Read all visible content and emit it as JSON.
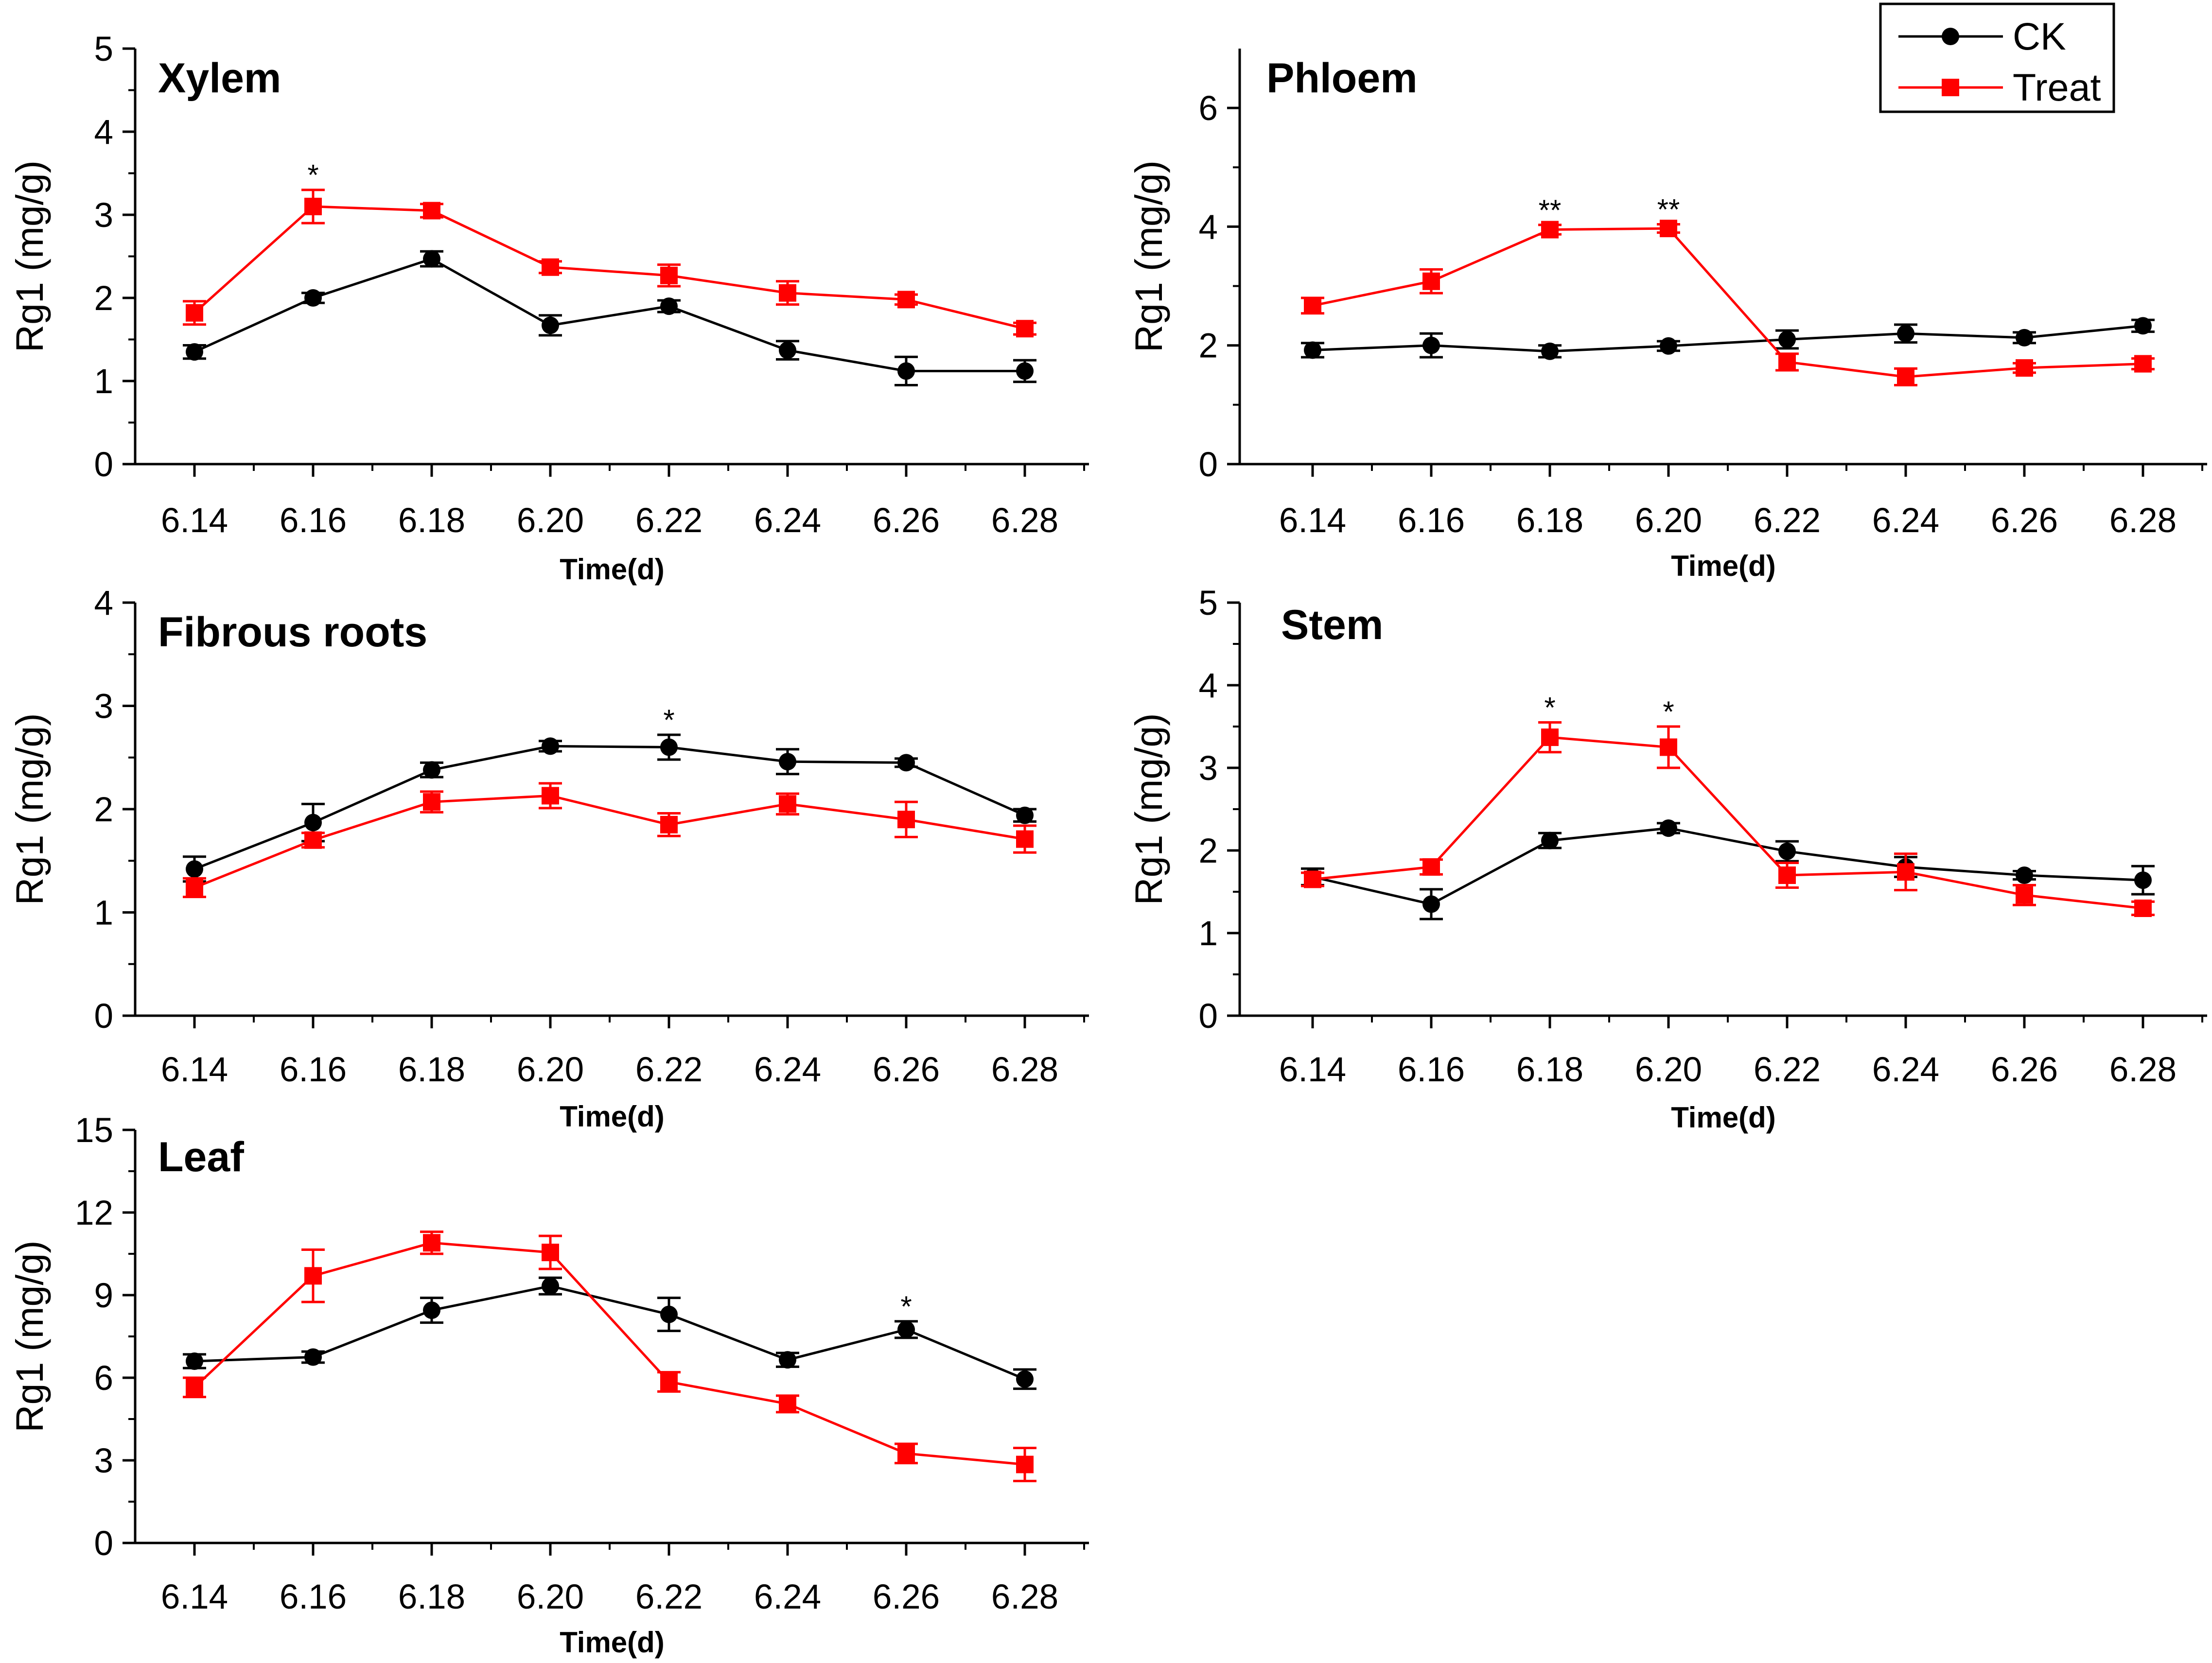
{
  "chart_data": {
    "type": "line",
    "legend": {
      "position": "top-right",
      "entries": [
        {
          "name": "CK",
          "color": "#000000",
          "marker": "circle"
        },
        {
          "name": "Treat",
          "color": "#ff0000",
          "marker": "square"
        }
      ]
    },
    "x_tick_labels": [
      "6.14",
      "6.16",
      "6.18",
      "6.20",
      "6.22",
      "6.24",
      "6.26",
      "6.28"
    ],
    "panels": [
      {
        "name": "xylem",
        "title": "Xylem",
        "xlabel": "Time(d)",
        "ylabel": "Rg1 (mg/g)",
        "ylim": [
          0,
          5
        ],
        "yticks": [
          0,
          1,
          2,
          3,
          4,
          5
        ],
        "series": [
          {
            "name": "CK",
            "values": [
              1.35,
              2.0,
              2.47,
              1.67,
              1.9,
              1.37,
              1.12,
              1.12
            ],
            "errors": [
              0.08,
              0.06,
              0.09,
              0.12,
              0.07,
              0.11,
              0.17,
              0.13
            ]
          },
          {
            "name": "Treat",
            "values": [
              1.82,
              3.1,
              3.05,
              2.37,
              2.27,
              2.06,
              1.98,
              1.63
            ],
            "errors": [
              0.14,
              0.2,
              0.08,
              0.07,
              0.13,
              0.14,
              0.06,
              0.07
            ]
          }
        ],
        "significance": [
          {
            "index": 1,
            "label": "*"
          }
        ]
      },
      {
        "name": "phloem",
        "title": "Phloem",
        "xlabel": "Time(d)",
        "ylabel": "Rg1 (mg/g)",
        "ylim": [
          0,
          7
        ],
        "yticks": [
          0,
          2,
          4,
          6
        ],
        "series": [
          {
            "name": "CK",
            "values": [
              1.92,
              2.0,
              1.9,
              1.99,
              2.1,
              2.2,
              2.13,
              2.33
            ],
            "errors": [
              0.12,
              0.2,
              0.1,
              0.08,
              0.15,
              0.15,
              0.09,
              0.1
            ]
          },
          {
            "name": "Treat",
            "values": [
              2.67,
              3.08,
              3.95,
              3.97,
              1.72,
              1.47,
              1.62,
              1.69
            ],
            "errors": [
              0.13,
              0.2,
              0.08,
              0.07,
              0.14,
              0.14,
              0.08,
              0.09
            ]
          }
        ],
        "significance": [
          {
            "index": 2,
            "label": "**"
          },
          {
            "index": 3,
            "label": "**"
          }
        ]
      },
      {
        "name": "fibrous-roots",
        "title": "Fibrous roots",
        "xlabel": "Time(d)",
        "ylabel": "Rg1 (mg/g)",
        "ylim": [
          0,
          4
        ],
        "yticks": [
          0,
          1,
          2,
          3,
          4
        ],
        "series": [
          {
            "name": "CK",
            "values": [
              1.42,
              1.87,
              2.38,
              2.61,
              2.6,
              2.46,
              2.45,
              1.94
            ],
            "errors": [
              0.12,
              0.18,
              0.07,
              0.05,
              0.12,
              0.12,
              0.04,
              0.06
            ]
          },
          {
            "name": "Treat",
            "values": [
              1.24,
              1.7,
              2.07,
              2.13,
              1.85,
              2.05,
              1.9,
              1.71
            ],
            "errors": [
              0.09,
              0.07,
              0.1,
              0.12,
              0.11,
              0.1,
              0.17,
              0.13
            ]
          }
        ],
        "significance": [
          {
            "index": 4,
            "label": "*"
          }
        ]
      },
      {
        "name": "stem",
        "title": "Stem",
        "xlabel": "Time(d)",
        "ylabel": "Rg1 (mg/g)",
        "ylim": [
          0,
          5
        ],
        "yticks": [
          0,
          1,
          2,
          3,
          4,
          5
        ],
        "series": [
          {
            "name": "CK",
            "values": [
              1.68,
              1.35,
              2.12,
              2.27,
              1.99,
              1.8,
              1.7,
              1.64
            ],
            "errors": [
              0.1,
              0.18,
              0.09,
              0.06,
              0.12,
              0.12,
              0.05,
              0.17
            ]
          },
          {
            "name": "Treat",
            "values": [
              1.65,
              1.8,
              3.37,
              3.25,
              1.7,
              1.74,
              1.46,
              1.3
            ],
            "errors": [
              0.08,
              0.09,
              0.18,
              0.25,
              0.15,
              0.22,
              0.12,
              0.08
            ]
          }
        ],
        "significance": [
          {
            "index": 2,
            "label": "*"
          },
          {
            "index": 3,
            "label": "*"
          }
        ]
      },
      {
        "name": "leaf",
        "title": "Leaf",
        "xlabel": "Time(d)",
        "ylabel": "Rg1 (mg/g)",
        "ylim": [
          0,
          15
        ],
        "yticks": [
          0,
          3,
          6,
          9,
          12,
          15
        ],
        "series": [
          {
            "name": "CK",
            "values": [
              6.6,
              6.75,
              8.45,
              9.33,
              8.3,
              6.65,
              7.75,
              5.95
            ],
            "errors": [
              0.25,
              0.2,
              0.45,
              0.3,
              0.6,
              0.25,
              0.3,
              0.35
            ]
          },
          {
            "name": "Treat",
            "values": [
              5.65,
              9.7,
              10.9,
              10.55,
              5.85,
              5.05,
              3.25,
              2.85
            ],
            "errors": [
              0.35,
              0.95,
              0.4,
              0.6,
              0.35,
              0.3,
              0.35,
              0.6
            ]
          }
        ],
        "significance": [
          {
            "index": 6,
            "label": "*"
          }
        ]
      }
    ]
  }
}
